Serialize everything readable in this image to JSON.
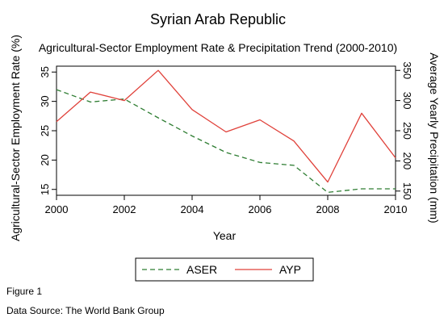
{
  "chart_data": {
    "type": "line",
    "title": "Syrian Arab Republic",
    "subtitle": "Agricultural-Sector Employment Rate & Precipitation Trend (2000-2010)",
    "xlabel": "Year",
    "ylabel_left": "Agricultural-Sector Employment Rate (%)",
    "ylabel_right": "Average Yearly Precipitation (mm)",
    "x": [
      2000,
      2001,
      2002,
      2003,
      2004,
      2005,
      2006,
      2007,
      2008,
      2009,
      2010
    ],
    "x_ticks": [
      "2000",
      "2002",
      "2004",
      "2006",
      "2008",
      "2010"
    ],
    "xlim": [
      2000,
      2010
    ],
    "ylim_left": [
      14,
      36
    ],
    "left_ticks": [
      15,
      20,
      25,
      30,
      35
    ],
    "ylim_right": [
      143,
      357
    ],
    "right_ticks": [
      150,
      200,
      250,
      300,
      350
    ],
    "legend_position": "bottom-center",
    "grid": false,
    "series": [
      {
        "name": "ASER",
        "axis": "left",
        "color": "#2e7d32",
        "dash": "dashed",
        "values": [
          32.0,
          29.9,
          30.4,
          27.2,
          24.1,
          21.3,
          19.6,
          19.1,
          14.5,
          15.1,
          15.1
        ]
      },
      {
        "name": "AYP",
        "axis": "right",
        "color": "#e0413a",
        "dash": "solid",
        "values": [
          265,
          314,
          300,
          350,
          285,
          248,
          268,
          233,
          165,
          279,
          205
        ]
      }
    ]
  },
  "notes": {
    "figure": "Figure 1",
    "source": "Data Source: The World Bank Group"
  }
}
